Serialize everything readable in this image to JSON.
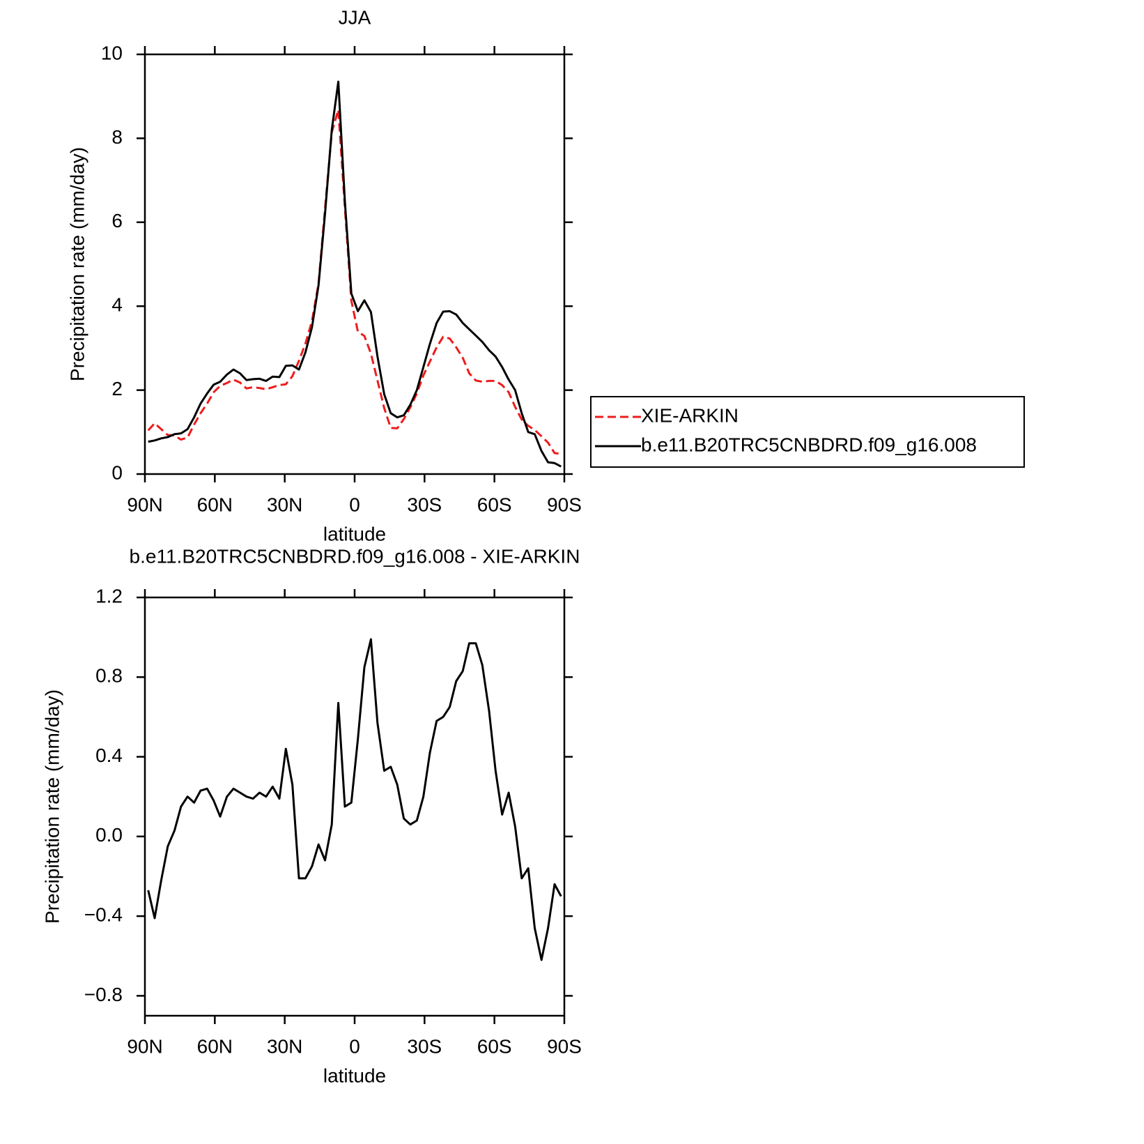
{
  "chart_data": [
    {
      "type": "line",
      "title": "JJA",
      "x_label": "latitude",
      "y_label": "Precipitation rate (mm/day)",
      "xlim": [
        90,
        -90
      ],
      "xticks": [
        {
          "value": 90,
          "label": "90N"
        },
        {
          "value": 60,
          "label": "60N"
        },
        {
          "value": 30,
          "label": "30N"
        },
        0,
        {
          "value": -30,
          "label": "30S"
        },
        {
          "value": -60,
          "label": "60S"
        },
        {
          "value": -90,
          "label": "90S"
        }
      ],
      "ylim": [
        0,
        10
      ],
      "yticks": [
        0,
        2,
        4,
        6,
        8,
        10
      ],
      "legend": "right",
      "x": [
        88.6,
        85.8,
        83.0,
        80.2,
        77.3,
        74.5,
        71.7,
        68.9,
        66.1,
        63.3,
        60.5,
        57.7,
        54.8,
        52.0,
        49.2,
        46.4,
        43.6,
        40.8,
        38.0,
        35.2,
        32.3,
        29.5,
        26.7,
        23.9,
        21.1,
        18.3,
        15.5,
        12.7,
        9.8,
        7.0,
        4.2,
        1.4,
        -1.4,
        -4.2,
        -7.0,
        -9.8,
        -12.7,
        -15.5,
        -18.3,
        -21.1,
        -23.9,
        -26.7,
        -29.5,
        -32.3,
        -35.2,
        -38.0,
        -40.8,
        -43.6,
        -46.4,
        -49.2,
        -52.0,
        -54.8,
        -57.7,
        -60.5,
        -63.3,
        -66.1,
        -68.9,
        -71.7,
        -74.5,
        -77.3,
        -80.2,
        -83.0,
        -85.8,
        -88.6
      ],
      "series": [
        {
          "name": "XIE-ARKIN",
          "color": "#ee1c1c",
          "line_style": "dashed",
          "values": [
            1.04,
            1.21,
            1.07,
            0.93,
            0.92,
            0.82,
            0.87,
            1.18,
            1.45,
            1.68,
            1.95,
            2.1,
            2.17,
            2.25,
            2.18,
            2.04,
            2.07,
            2.05,
            2.02,
            2.07,
            2.12,
            2.14,
            2.33,
            2.7,
            3.11,
            3.65,
            4.54,
            6.32,
            8.14,
            8.68,
            6.35,
            4.13,
            3.39,
            3.29,
            2.87,
            2.23,
            1.57,
            1.1,
            1.09,
            1.31,
            1.59,
            1.92,
            2.35,
            2.68,
            3.02,
            3.27,
            3.23,
            3.02,
            2.77,
            2.4,
            2.23,
            2.2,
            2.22,
            2.22,
            2.12,
            1.95,
            1.6,
            1.3,
            1.15,
            1.05,
            0.9,
            0.75,
            0.5,
            0.48
          ]
        },
        {
          "name": "b.e11.B20TRC5CNBDRD.f09_g16.008",
          "color": "#000000",
          "line_style": "solid",
          "values": [
            0.77,
            0.8,
            0.85,
            0.88,
            0.95,
            0.97,
            1.07,
            1.35,
            1.68,
            1.92,
            2.13,
            2.2,
            2.37,
            2.49,
            2.4,
            2.24,
            2.26,
            2.27,
            2.22,
            2.32,
            2.31,
            2.58,
            2.59,
            2.49,
            2.9,
            3.5,
            4.5,
            6.2,
            8.2,
            9.35,
            6.5,
            4.3,
            3.88,
            4.14,
            3.86,
            2.8,
            1.9,
            1.45,
            1.35,
            1.4,
            1.65,
            2.0,
            2.55,
            3.1,
            3.6,
            3.87,
            3.88,
            3.8,
            3.6,
            3.45,
            3.3,
            3.15,
            2.95,
            2.8,
            2.55,
            2.25,
            2.0,
            1.45,
            1.0,
            0.95,
            0.55,
            0.28,
            0.26,
            0.18
          ]
        }
      ]
    },
    {
      "type": "line",
      "title": "b.e11.B20TRC5CNBDRD.f09_g16.008 - XIE-ARKIN",
      "x_label": "latitude",
      "y_label": "Precipitation rate (mm/day)",
      "xlim": [
        90,
        -90
      ],
      "xticks": [
        {
          "value": 90,
          "label": "90N"
        },
        {
          "value": 60,
          "label": "60N"
        },
        {
          "value": 30,
          "label": "30N"
        },
        0,
        {
          "value": -30,
          "label": "30S"
        },
        {
          "value": -60,
          "label": "60S"
        },
        {
          "value": -90,
          "label": "90S"
        }
      ],
      "ylim": [
        -0.9,
        1.2
      ],
      "yticks": [
        {
          "value": -0.8,
          "label": "−0.8"
        },
        {
          "value": -0.4,
          "label": "−0.4"
        },
        {
          "value": 0,
          "label": "0.0"
        },
        0.4,
        0.8,
        1.2
      ],
      "x": [
        88.6,
        85.8,
        83.0,
        80.2,
        77.3,
        74.5,
        71.7,
        68.9,
        66.1,
        63.3,
        60.5,
        57.7,
        54.8,
        52.0,
        49.2,
        46.4,
        43.6,
        40.8,
        38.0,
        35.2,
        32.3,
        29.5,
        26.7,
        23.9,
        21.1,
        18.3,
        15.5,
        12.7,
        9.8,
        7.0,
        4.2,
        1.4,
        -1.4,
        -4.2,
        -7.0,
        -9.8,
        -12.7,
        -15.5,
        -18.3,
        -21.1,
        -23.9,
        -26.7,
        -29.5,
        -32.3,
        -35.2,
        -38.0,
        -40.8,
        -43.6,
        -46.4,
        -49.2,
        -52.0,
        -54.8,
        -57.7,
        -60.5,
        -63.3,
        -66.1,
        -68.9,
        -71.7,
        -74.5,
        -77.3,
        -80.2,
        -83.0,
        -85.8,
        -88.6
      ],
      "series": [
        {
          "color": "#000000",
          "line_style": "solid",
          "values": [
            -0.27,
            -0.41,
            -0.22,
            -0.05,
            0.03,
            0.15,
            0.2,
            0.17,
            0.23,
            0.24,
            0.18,
            0.1,
            0.2,
            0.24,
            0.22,
            0.2,
            0.19,
            0.22,
            0.2,
            0.25,
            0.19,
            0.44,
            0.26,
            -0.21,
            -0.21,
            -0.15,
            -0.04,
            -0.12,
            0.06,
            0.67,
            0.15,
            0.17,
            0.49,
            0.85,
            0.99,
            0.57,
            0.33,
            0.35,
            0.26,
            0.09,
            0.06,
            0.08,
            0.2,
            0.42,
            0.58,
            0.6,
            0.65,
            0.78,
            0.83,
            0.97,
            0.97,
            0.86,
            0.63,
            0.33,
            0.11,
            0.22,
            0.05,
            -0.21,
            -0.16,
            -0.46,
            -0.62,
            -0.46,
            -0.24,
            -0.3
          ]
        }
      ]
    }
  ]
}
